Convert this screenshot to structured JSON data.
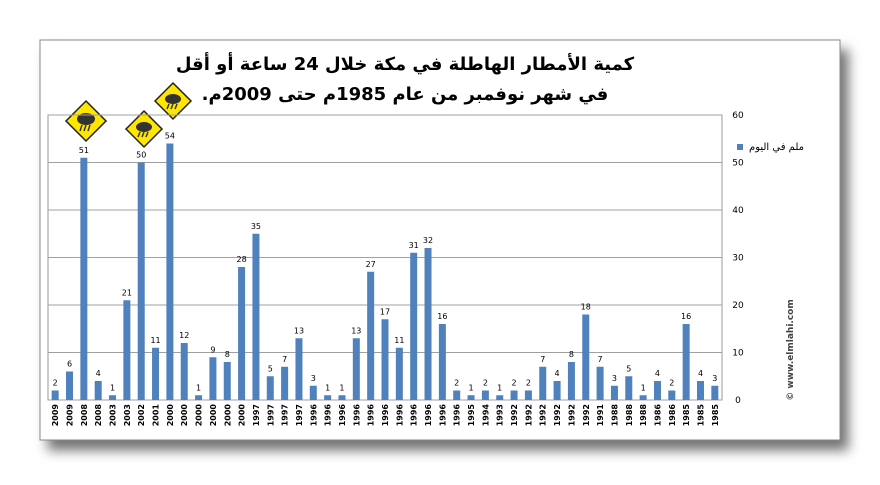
{
  "chart_data": {
    "type": "bar",
    "title": "كمية الأمطار الهاطلة في مكة خلال 24 ساعة أو أقل",
    "subtitle": "في شهر نوفمبر من عام 1985م حتى 2009م.",
    "categories": [
      "2009",
      "2009",
      "2008",
      "2008",
      "2003",
      "2003",
      "2002",
      "2001",
      "2000",
      "2000",
      "2000",
      "2000",
      "2000",
      "2000",
      "1997",
      "1997",
      "1997",
      "1997",
      "1996",
      "1996",
      "1996",
      "1996",
      "1996",
      "1996",
      "1996",
      "1996",
      "1996",
      "1996",
      "1996",
      "1995",
      "1994",
      "1993",
      "1992",
      "1992",
      "1992",
      "1992",
      "1992",
      "1992",
      "1991",
      "1988",
      "1988",
      "1988",
      "1986",
      "1986",
      "1985",
      "1985",
      "1985"
    ],
    "series": [
      {
        "name": "ملم في اليوم",
        "color": "#4f81bd",
        "values": [
          2,
          6,
          51,
          4,
          1,
          21,
          50,
          11,
          54,
          12,
          1,
          9,
          8,
          28,
          35,
          5,
          7,
          13,
          3,
          1,
          1,
          13,
          27,
          17,
          11,
          31,
          32,
          16,
          2,
          1,
          2,
          1,
          2,
          2,
          7,
          4,
          8,
          18,
          7,
          3,
          5,
          1,
          4,
          2,
          16,
          4,
          3
        ]
      }
    ],
    "ylim": [
      0,
      60
    ],
    "yticks": [
      0,
      10,
      20,
      30,
      40,
      50,
      60
    ],
    "grid": true,
    "legend": "right",
    "watermark": "© www.elmlahi.com"
  }
}
